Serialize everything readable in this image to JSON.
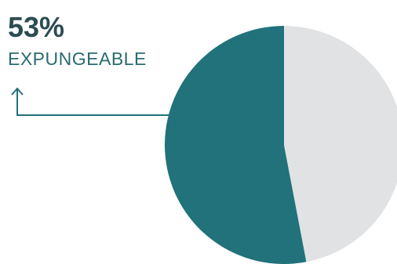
{
  "chart_data": {
    "type": "pie",
    "categories": [
      "EXPUNGEABLE",
      null
    ],
    "values": [
      53,
      47
    ],
    "value_labels": [
      "53%",
      null
    ],
    "colors": [
      "#21727a",
      "#e1e2e4"
    ]
  }
}
